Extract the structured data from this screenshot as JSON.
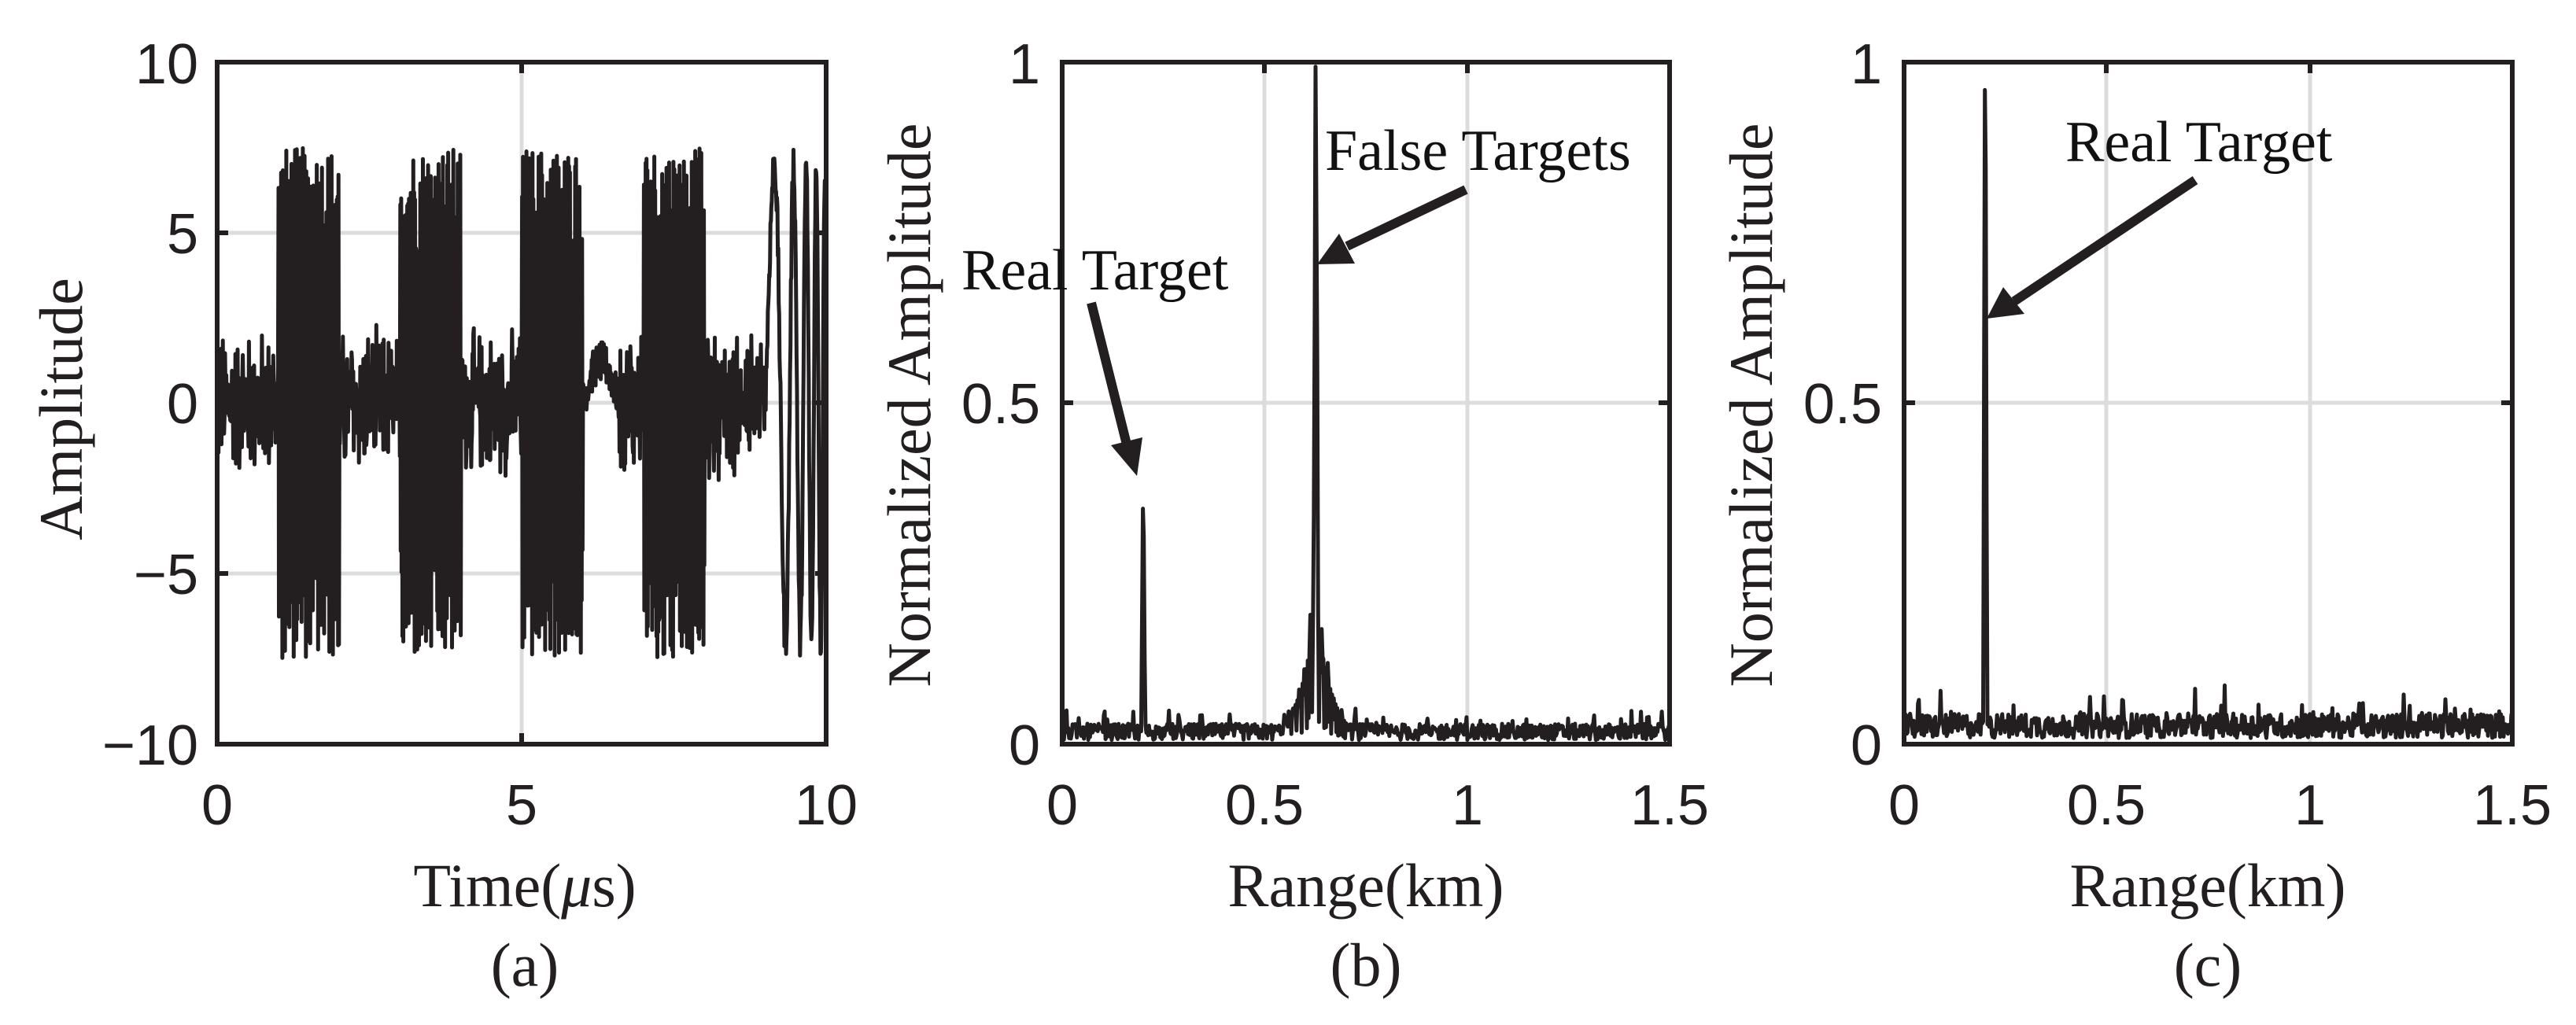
{
  "figure": {
    "background": "#ffffff",
    "line_color": "#231f20",
    "grid_color": "#dcdcdc"
  },
  "panels": [
    {
      "id": "a",
      "sublabel": "(a)",
      "xlabel_main": "Time(",
      "xlabel_mu": "μ",
      "xlabel_tail": "s)",
      "ylabel": "Amplitude",
      "xticks": [
        "0",
        "5",
        "10"
      ],
      "yticks": [
        "10",
        "5",
        "0",
        "−5",
        "−10"
      ]
    },
    {
      "id": "b",
      "sublabel": "(b)",
      "xlabel": "Range(km)",
      "ylabel": "Normalized Amplitude",
      "xticks": [
        "0",
        "0.5",
        "1",
        "1.5"
      ],
      "yticks": [
        "1",
        "0.5",
        "0"
      ],
      "annotations": [
        {
          "text": "Real Target"
        },
        {
          "text": "False Targets"
        }
      ]
    },
    {
      "id": "c",
      "sublabel": "(c)",
      "xlabel": "Range(km)",
      "ylabel": "Normalized Amplitude",
      "xticks": [
        "0",
        "0.5",
        "1",
        "1.5"
      ],
      "yticks": [
        "1",
        "0.5",
        "0"
      ],
      "annotations": [
        {
          "text": "Real Target"
        }
      ]
    }
  ],
  "chart_data": [
    {
      "type": "line",
      "title": "",
      "subtitle": "(a)",
      "xlabel": "Time(μs)",
      "ylabel": "Amplitude",
      "xlim": [
        0,
        10
      ],
      "ylim": [
        -10,
        10
      ],
      "xticks": [
        0,
        5,
        10
      ],
      "yticks": [
        -10,
        -5,
        0,
        5,
        10
      ],
      "grid": true,
      "legend": null,
      "description": "Noisy time-domain signal: four high-amplitude bursts plus background noise and a low-frequency oscillation near the end",
      "segments": [
        {
          "t_start": 0.0,
          "t_end": 1.0,
          "kind": "noise",
          "amplitude_range": [
            -2.8,
            2.8
          ]
        },
        {
          "t_start": 1.0,
          "t_end": 2.0,
          "kind": "burst",
          "amplitude_range": [
            -7.4,
            7.7
          ]
        },
        {
          "t_start": 2.0,
          "t_end": 3.0,
          "kind": "noise",
          "amplitude_range": [
            -2.5,
            2.7
          ]
        },
        {
          "t_start": 3.0,
          "t_end": 4.0,
          "kind": "burst",
          "amplitude_range": [
            -7.2,
            6.9
          ]
        },
        {
          "t_start": 4.0,
          "t_end": 5.0,
          "kind": "noise",
          "amplitude_range": [
            -2.4,
            2.6
          ]
        },
        {
          "t_start": 5.0,
          "t_end": 6.0,
          "kind": "burst",
          "amplitude_range": [
            -7.5,
            7.0
          ]
        },
        {
          "t_start": 6.0,
          "t_end": 7.0,
          "kind": "noise_with_bump",
          "amplitude_range": [
            -2.5,
            2.5
          ]
        },
        {
          "t_start": 7.0,
          "t_end": 8.0,
          "kind": "burst",
          "amplitude_range": [
            -6.7,
            6.9
          ]
        },
        {
          "t_start": 8.0,
          "t_end": 9.0,
          "kind": "noise",
          "amplitude_range": [
            -2.0,
            2.2
          ]
        },
        {
          "t_start": 9.0,
          "t_end": 10.0,
          "kind": "low_freq_oscillation",
          "amplitude_range": [
            -7.5,
            7.4
          ]
        }
      ]
    },
    {
      "type": "line",
      "subtitle": "(b)",
      "xlabel": "Range(km)",
      "ylabel": "Normalized Amplitude",
      "xlim": [
        0,
        1.5
      ],
      "ylim": [
        0,
        1
      ],
      "xticks": [
        0,
        0.5,
        1,
        1.5
      ],
      "yticks": [
        0,
        0.5,
        1
      ],
      "grid": true,
      "noise_floor": 0.02,
      "peaks": [
        {
          "x": 0.2,
          "y": 0.36,
          "label": "Real Target"
        },
        {
          "x": 0.626,
          "y": 1.0,
          "label": "False Targets"
        },
        {
          "x": 0.628,
          "y": 0.78
        },
        {
          "x": 0.624,
          "y": 0.57
        },
        {
          "x": 0.613,
          "y": 0.19
        },
        {
          "x": 0.641,
          "y": 0.17
        },
        {
          "x": 0.598,
          "y": 0.11
        },
        {
          "x": 0.656,
          "y": 0.12
        },
        {
          "x": 0.585,
          "y": 0.08
        },
        {
          "x": 0.67,
          "y": 0.07
        },
        {
          "x": 0.56,
          "y": 0.05
        },
        {
          "x": 0.69,
          "y": 0.05
        }
      ],
      "annotations": [
        {
          "text": "Real Target",
          "arrow_to": [
            0.2,
            0.39
          ]
        },
        {
          "text": "False Targets",
          "arrow_to": [
            0.63,
            0.73
          ]
        }
      ]
    },
    {
      "type": "line",
      "subtitle": "(c)",
      "xlabel": "Range(km)",
      "ylabel": "Normalized Amplitude",
      "xlim": [
        0,
        1.5
      ],
      "ylim": [
        0,
        1
      ],
      "xticks": [
        0,
        0.5,
        1,
        1.5
      ],
      "yticks": [
        0,
        0.5,
        1
      ],
      "grid": true,
      "noise_floor": 0.03,
      "peaks": [
        {
          "x": 0.2,
          "y": 1.0,
          "label": "Real Target"
        }
      ],
      "annotations": [
        {
          "text": "Real Target",
          "arrow_to": [
            0.2,
            0.65
          ]
        }
      ]
    }
  ]
}
